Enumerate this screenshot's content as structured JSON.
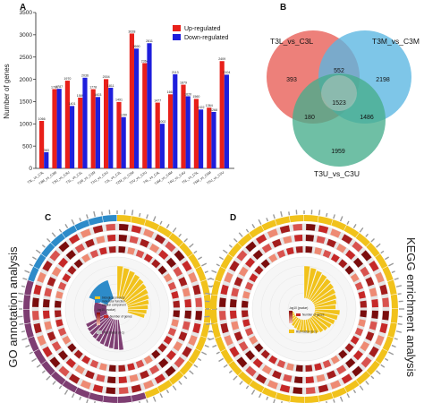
{
  "panel_labels": {
    "a": "A",
    "b": "B",
    "c": "C",
    "d": "D"
  },
  "colors": {
    "up": "#e8201a",
    "down": "#1e1edc",
    "venn_t3l": "#ea6a63",
    "venn_t3m": "#5ab6e2",
    "venn_t3u": "#47ad8c",
    "venn_center": "#b9c7c0",
    "go_yellow": "#f1c21b",
    "go_blue": "#2d8bc9",
    "go_purple": "#7e3e72",
    "kegg_yellow": "#f1c21b"
  },
  "chart_data": [
    {
      "panel": "A",
      "type": "bar",
      "title": "",
      "xlabel": "",
      "ylabel": "Number of genes",
      "ylim": [
        0,
        3500
      ],
      "yticks": [
        0,
        500,
        1000,
        1500,
        2000,
        2500,
        3000,
        3500
      ],
      "grid": false,
      "legend_position": "top-right",
      "categories": [
        "T3L_vs_C3L",
        "T3M_vs_C3M",
        "T3U_vs_C3U",
        "T1L_vs_C1L",
        "T1M_vs_C1M",
        "T1U_vs_C1U",
        "T2L_vs_C2L",
        "T2M_vs_C2M",
        "T2U_vs_C2U",
        "T4L_vs_C4L",
        "T4M_vs_C4M",
        "T4U_vs_C4U",
        "T5L_vs_C5L",
        "T5M_vs_C5M",
        "T5U_vs_C5U"
      ],
      "series": [
        {
          "name": "Up-regulated",
          "values": [
            1066,
            1780,
            1970,
            1589,
            1778,
            2004,
            1491,
            3028,
            2364,
            1477,
            1663,
            1879,
            1560,
            1364,
            2409
          ]
        },
        {
          "name": "Down-regulated",
          "values": [
            363,
            1787,
            1401,
            2036,
            1603,
            1811,
            1150,
            2690,
            2811,
            1002,
            2113,
            1620,
            1322,
            1268,
            2104
          ]
        }
      ]
    },
    {
      "panel": "B",
      "type": "venn",
      "sets": [
        "T3L_vs_C3L",
        "T3M_vs_C3M",
        "T3U_vs_C3U"
      ],
      "regions": {
        "only_t3l": 393,
        "only_t3m": 2198,
        "only_t3u": 1959,
        "t3l_t3m": 552,
        "t3l_t3u": 180,
        "t3m_t3u": 1486,
        "all": 1523
      }
    },
    {
      "panel": "C",
      "type": "circular-enrichment",
      "legend_items": [
        "biological process",
        "molecular function",
        "cellular component"
      ],
      "legend_pvalue_title": "-log10 (pvalue)",
      "legend_number": "Number of genes",
      "legend_rich": "Rich factor (0-1)"
    },
    {
      "panel": "D",
      "type": "circular-enrichment",
      "legend_pvalue_title": "-log10 (pvalue)",
      "legend_number": "Number of genes",
      "legend_rich": "Rich factor (0-1)"
    }
  ],
  "side_titles": {
    "left": "GO annotation analysis",
    "right": "KEGG enrichment analysis"
  }
}
